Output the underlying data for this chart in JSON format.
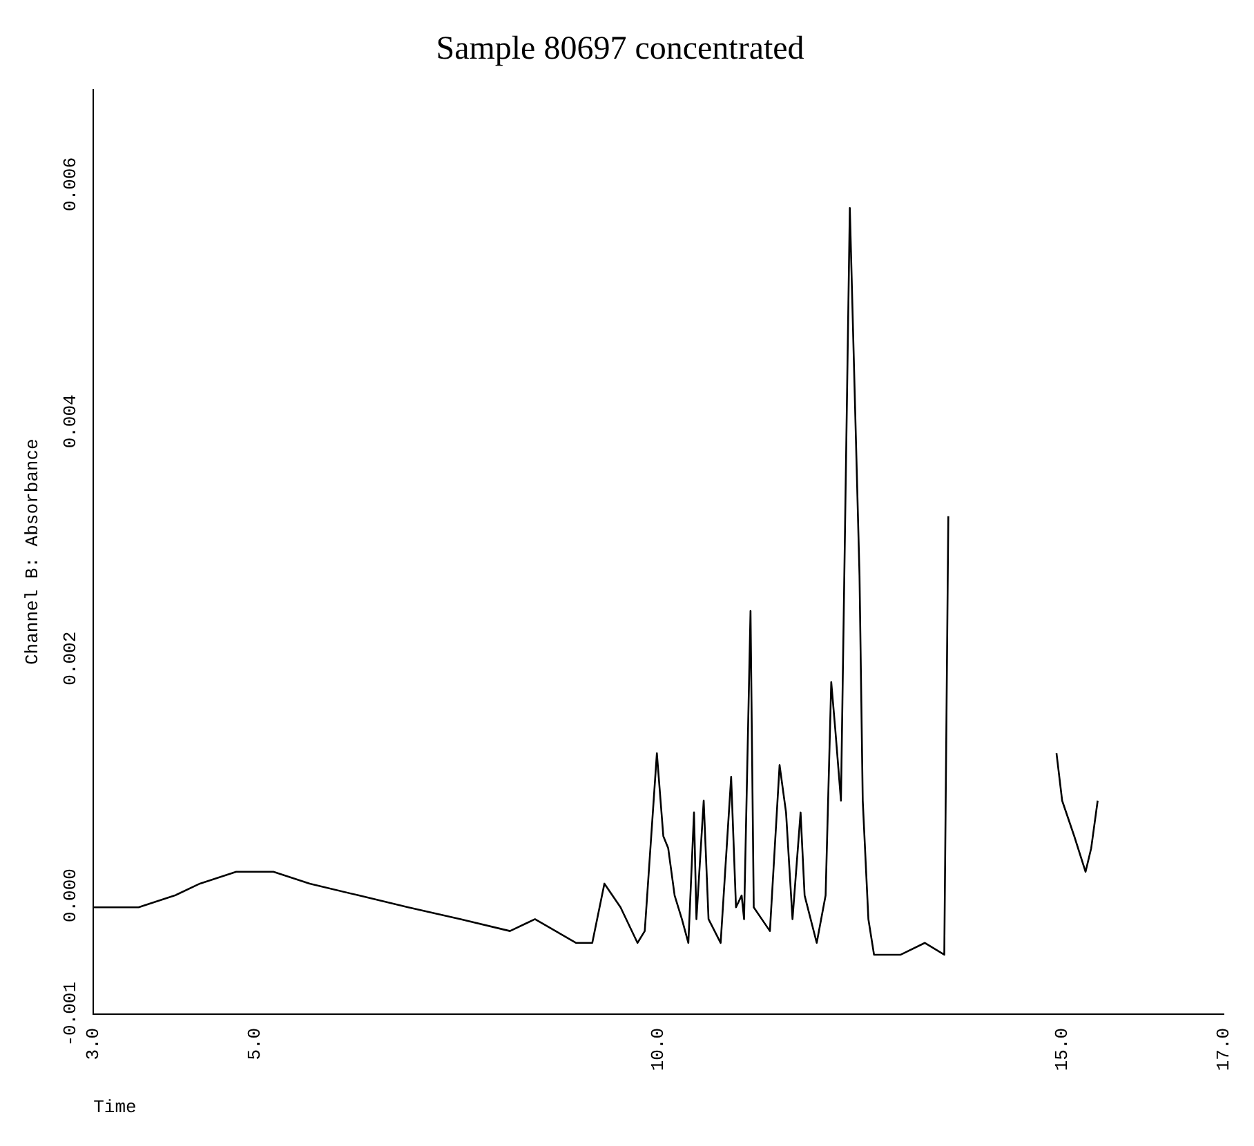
{
  "chart_data": {
    "type": "line",
    "title": "Sample 80697 concentrated",
    "xlabel": "Time",
    "ylabel": "Channel B: Absorbance",
    "xlim": [
      3,
      17
    ],
    "xticks": [
      {
        "value": 3,
        "label": "3.0"
      },
      {
        "value": 5,
        "label": "5.0"
      },
      {
        "value": 10,
        "label": "10.0"
      },
      {
        "value": 15,
        "label": "15.0"
      },
      {
        "value": 17,
        "label": "17.0"
      }
    ],
    "ylim": [
      -0.001,
      0.0068
    ],
    "yticks": [
      {
        "value": -0.001,
        "label": "-0.001"
      },
      {
        "value": 0,
        "label": "0.000"
      },
      {
        "value": 0.002,
        "label": "0.002"
      },
      {
        "value": 0.004,
        "label": "0.004"
      },
      {
        "value": 0.006,
        "label": "0.006"
      }
    ],
    "grid": false,
    "legend": false,
    "marker": "none",
    "line_style": "solid",
    "series": [
      {
        "color": "#000000",
        "x": [
          3.0,
          3.56,
          4.01,
          4.32,
          4.77,
          5.23,
          5.68,
          6.29,
          6.9,
          7.55,
          8.16,
          8.47,
          8.98,
          9.18,
          9.33,
          9.53,
          9.74,
          9.83,
          9.98,
          10.06,
          10.12,
          10.2,
          10.29,
          10.37,
          10.44,
          10.47,
          10.56,
          10.62,
          10.77,
          10.9,
          10.96,
          11.03,
          11.06,
          11.14,
          11.18,
          11.38,
          11.5,
          11.58,
          11.66,
          11.76,
          11.81,
          11.96,
          12.07,
          12.14,
          12.19,
          12.26,
          12.37,
          12.49,
          12.53,
          12.6,
          12.67,
          13.0,
          13.3,
          13.54,
          13.59,
          13.62,
          13.7,
          14.9,
          14.91,
          14.93,
          15.0,
          15.15,
          15.29,
          15.36,
          15.44
        ],
        "values": [
          -0.0001,
          -0.0001,
          0,
          0.0001,
          0.0002,
          0.0002,
          0.0001,
          0,
          -0.0001,
          -0.0002,
          -0.0003,
          -0.0002,
          -0.0004,
          -0.0004,
          0.0001,
          -0.0001,
          -0.0004,
          -0.0003,
          0.0012,
          0.0005,
          0.0004,
          0,
          -0.0002,
          -0.0004,
          0.0007,
          -0.0002,
          0.0008,
          -0.0002,
          -0.0004,
          0.001,
          -0.0001,
          0,
          -0.0002,
          0.0024,
          -0.0001,
          -0.0003,
          0.0011,
          0.0007,
          -0.0002,
          0.0007,
          0,
          -0.0004,
          0,
          0.0018,
          0.0014,
          0.0008,
          0.0058,
          0.0027,
          0.0008,
          -0.0002,
          -0.0005,
          -0.0005,
          -0.0004,
          -0.0005,
          0.0032,
          null,
          null,
          null,
          null,
          0.0012,
          0.0008,
          0.0005,
          0.0002,
          0.0004,
          0.0008
        ]
      }
    ]
  }
}
